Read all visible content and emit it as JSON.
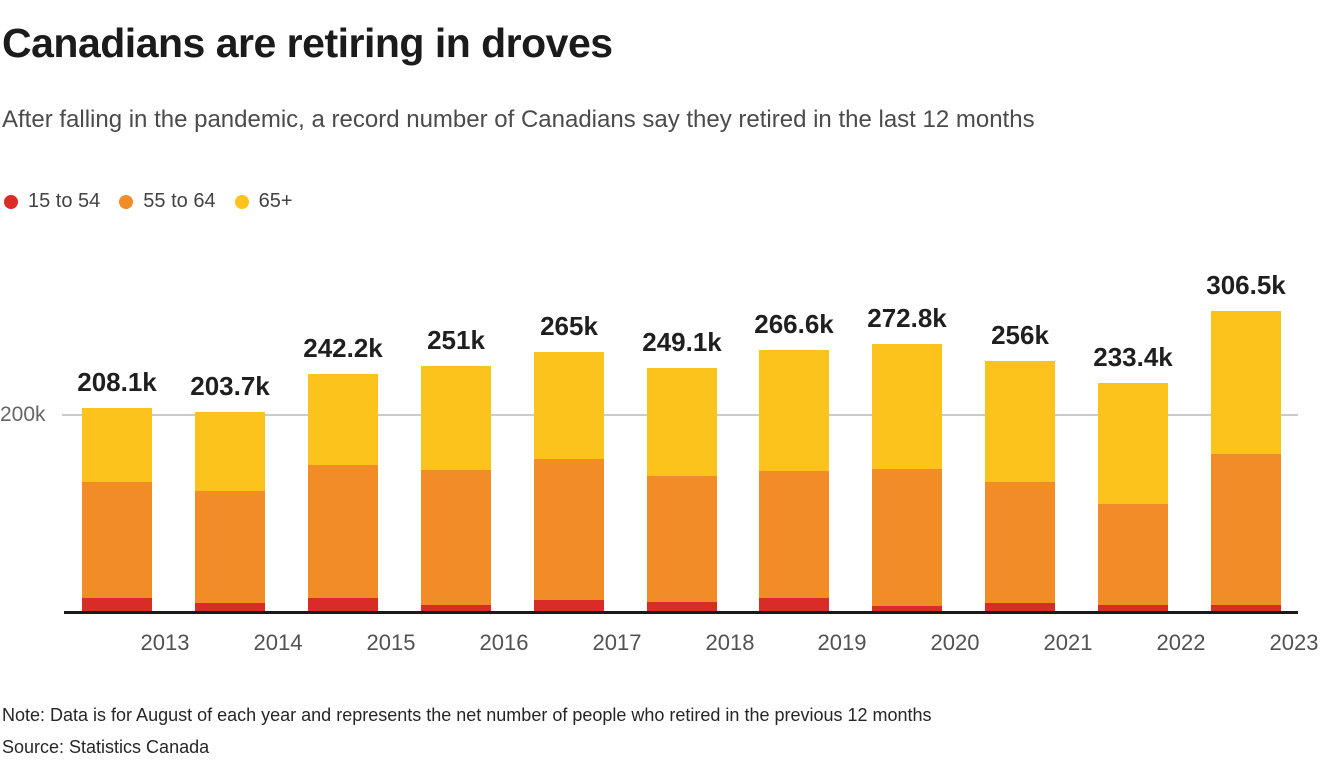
{
  "header": {
    "title": "Canadians are retiring in droves",
    "subtitle": "After falling in the pandemic, a record number of Canadians say they retired in the last 12 months"
  },
  "legend": [
    {
      "label": "15 to 54",
      "color": "#d92c27"
    },
    {
      "label": "55 to 64",
      "color": "#f28c27"
    },
    {
      "label": "65+",
      "color": "#fcc31d"
    }
  ],
  "chart_data": {
    "type": "bar",
    "stacked": true,
    "title": "Canadians are retiring in droves",
    "subtitle": "After falling in the pandemic, a record number of Canadians say they retired in the last 12 months",
    "unit": "thousands of people",
    "categories": [
      "2013",
      "2014",
      "2015",
      "2016",
      "2017",
      "2018",
      "2019",
      "2020",
      "2021",
      "2022",
      "2023"
    ],
    "series": [
      {
        "name": "15 to 54",
        "color": "#d92c27",
        "values": [
          15,
          10,
          15,
          8,
          13,
          11,
          15,
          7,
          10,
          8,
          8
        ]
      },
      {
        "name": "55 to 64",
        "color": "#f28c27",
        "values": [
          118,
          114,
          135,
          137,
          143,
          128.1,
          129,
          139,
          123,
          103,
          153
        ]
      },
      {
        "name": "65+",
        "color": "#fcc31d",
        "values": [
          75.1,
          79.7,
          92.2,
          106,
          109,
          110,
          122.6,
          126.8,
          123,
          122.4,
          145.5
        ]
      }
    ],
    "totals": [
      208.1,
      203.7,
      242.2,
      251,
      265,
      249.1,
      266.6,
      272.8,
      256,
      233.4,
      306.5
    ],
    "total_labels": [
      "208.1k",
      "203.7k",
      "242.2k",
      "251k",
      "265k",
      "249.1k",
      "266.6k",
      "272.8k",
      "256k",
      "233.4k",
      "306.5k"
    ],
    "y_axis": {
      "tick_label": "200k",
      "tick_value": 200,
      "gridlines_shown": [
        200
      ]
    },
    "legend_position": "top-left",
    "colors": {
      "axis": "#1a1a1a",
      "gridline": "#cbcbcb",
      "label_text": "#1f1f1f"
    }
  },
  "footer": {
    "note": "Note: Data is for August of each year and represents the net number of people who retired in the previous 12 months",
    "source": "Source: Statistics Canada"
  }
}
